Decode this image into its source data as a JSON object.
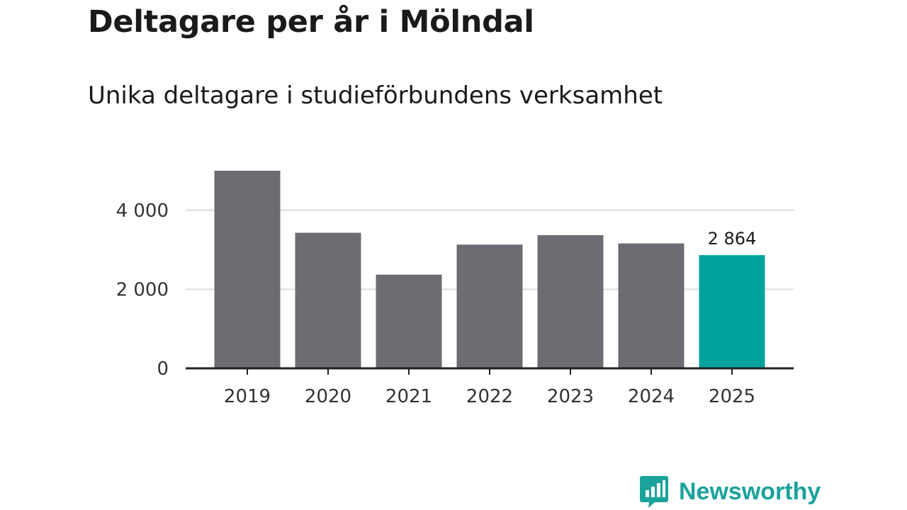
{
  "title": "Deltagare per år i Mölndal",
  "subtitle": "Unika deltagare i studieförbundens verksamhet",
  "brand": {
    "name": "Newsworthy",
    "color": "#19a39b",
    "icon": "newsworthy-chart-bubble-icon"
  },
  "colors": {
    "bar": "#6d6c72",
    "highlight": "#00a39b",
    "grid": "#dddddd",
    "axis": "#222222"
  },
  "chart_data": {
    "type": "bar",
    "title": "Deltagare per år i Mölndal",
    "subtitle": "Unika deltagare i studieförbundens verksamhet",
    "xlabel": "",
    "ylabel": "",
    "categories": [
      "2019",
      "2020",
      "2021",
      "2022",
      "2023",
      "2024",
      "2025"
    ],
    "values": [
      5000,
      3430,
      2370,
      3130,
      3370,
      3160,
      2864
    ],
    "highlight_index": 6,
    "data_labels": [
      {
        "category": "2025",
        "text": "2 864"
      }
    ],
    "ylim": [
      0,
      5000
    ],
    "yticks": [
      0,
      2000,
      4000
    ],
    "ytick_labels": [
      "0",
      "2 000",
      "4 000"
    ],
    "grid": true
  }
}
